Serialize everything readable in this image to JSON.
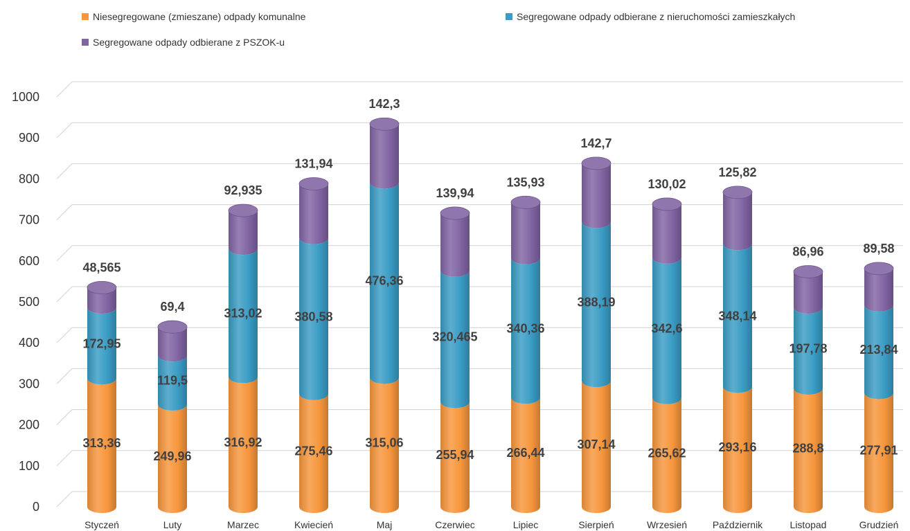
{
  "chart_data": {
    "type": "bar",
    "stacked": true,
    "style": "3d-cylinder",
    "categories": [
      "Styczeń",
      "Luty",
      "Marzec",
      "Kwiecień",
      "Maj",
      "Czerwiec",
      "Lipiec",
      "Sierpień",
      "Wrzesień",
      "Październik",
      "Listopad",
      "Grudzień"
    ],
    "series": [
      {
        "name": "Niesegregowane (zmieszane) odpady komunalne",
        "color": "#F7963C",
        "values": [
          313.36,
          249.96,
          316.92,
          275.46,
          315.06,
          255.94,
          266.44,
          307.14,
          265.62,
          293.16,
          288.8,
          277.91
        ],
        "labels": [
          "313,36",
          "249,96",
          "316,92",
          "275,46",
          "315,06",
          "255,94",
          "266,44",
          "307,14",
          "265,62",
          "293,16",
          "288,8",
          "277,91"
        ]
      },
      {
        "name": "Segregowane odpady odbierane z nieruchomości zamieszkałych",
        "color": "#3A9CC4",
        "values": [
          172.95,
          119.5,
          313.02,
          380.58,
          476.36,
          320.465,
          340.36,
          388.19,
          342.6,
          348.14,
          197.78,
          213.84
        ],
        "labels": [
          "172,95",
          "119,5",
          "313,02",
          "380,58",
          "476,36",
          "320,465",
          "340,36",
          "388,19",
          "342,6",
          "348,14",
          "197,78",
          "213,84"
        ]
      },
      {
        "name": "Segregowane odpady odbierane z PSZOK-u",
        "color": "#8064A2",
        "values": [
          48.565,
          69.4,
          92.935,
          131.94,
          142.3,
          139.94,
          135.93,
          142.7,
          130.02,
          125.82,
          86.96,
          89.58
        ],
        "labels": [
          "48,565",
          "69,4",
          "92,935",
          "131,94",
          "142,3",
          "139,94",
          "135,93",
          "142,7",
          "130,02",
          "125,82",
          "86,96",
          "89,58"
        ]
      }
    ],
    "ylim": [
      0,
      1000
    ],
    "yticks": [
      0,
      100,
      200,
      300,
      400,
      500,
      600,
      700,
      800,
      900,
      1000
    ],
    "grid": true,
    "legend": "top"
  }
}
